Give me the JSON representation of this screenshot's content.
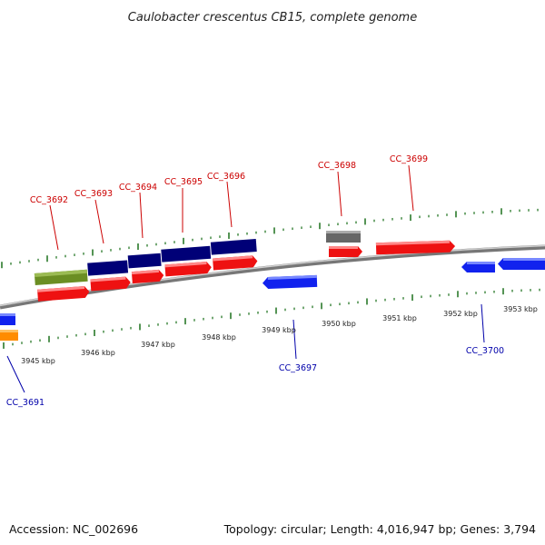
{
  "title": "Caulobacter crescentus CB15, complete genome",
  "footer": {
    "accession": "Accession: NC_002696",
    "topology": "Topology: circular; Length: 4,016,947 bp; Genes: 3,794"
  },
  "colors": {
    "forward_gene": "#ee1111",
    "reverse_gene": "#1122ee",
    "backbone": "#888888",
    "tick": "#2a7a2a",
    "label_forward": "#cc0000",
    "label_reverse": "#0000aa",
    "cog_navy": "#000077",
    "cog_olive": "#6b8e23",
    "cog_gray": "#666666",
    "cog_orange": "#ff8c00"
  },
  "kbp_labels": [
    "3945 kbp",
    "3946 kbp",
    "3947 kbp",
    "3948 kbp",
    "3949 kbp",
    "3950 kbp",
    "3951 kbp",
    "3952 kbp",
    "3953 kbp"
  ],
  "gene_labels": {
    "forward": [
      "CC_3692",
      "CC_3693",
      "CC_3694",
      "CC_3695",
      "CC_3696",
      "CC_3698",
      "CC_3699"
    ],
    "reverse": [
      "CC_3691",
      "CC_3697",
      "CC_3700"
    ]
  }
}
